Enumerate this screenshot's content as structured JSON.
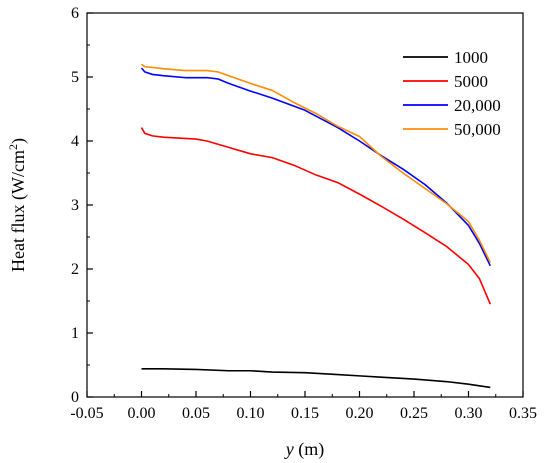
{
  "chart_data": {
    "type": "line",
    "title": "",
    "xlabel": "y",
    "xlabel_unit": " (m)",
    "ylabel": "Heat flux (W/cm",
    "ylabel_sup": "2",
    "ylabel_end": ")",
    "xlim": [
      -0.05,
      0.35
    ],
    "ylim": [
      0,
      6
    ],
    "xticks": [
      -0.05,
      0.0,
      0.05,
      0.1,
      0.15,
      0.2,
      0.25,
      0.3,
      0.35
    ],
    "xtick_labels": [
      "-0.05",
      "0.00",
      "0.05",
      "0.10",
      "0.15",
      "0.20",
      "0.25",
      "0.30",
      "0.35"
    ],
    "yticks": [
      0,
      1,
      2,
      3,
      4,
      5,
      6
    ],
    "ytick_labels": [
      "0",
      "1",
      "2",
      "3",
      "4",
      "5",
      "6"
    ],
    "grid": false,
    "legend_position": "top-right",
    "series": [
      {
        "name": "1000",
        "color": "#000000",
        "x": [
          0.0,
          0.02,
          0.05,
          0.08,
          0.1,
          0.12,
          0.15,
          0.18,
          0.2,
          0.22,
          0.25,
          0.28,
          0.3,
          0.32
        ],
        "y": [
          0.44,
          0.44,
          0.43,
          0.41,
          0.41,
          0.39,
          0.38,
          0.35,
          0.33,
          0.31,
          0.28,
          0.24,
          0.2,
          0.15
        ]
      },
      {
        "name": "5000",
        "color": "#ff0000",
        "x": [
          0.0,
          0.003,
          0.01,
          0.02,
          0.03,
          0.05,
          0.06,
          0.08,
          0.1,
          0.12,
          0.14,
          0.16,
          0.18,
          0.2,
          0.22,
          0.24,
          0.26,
          0.28,
          0.3,
          0.31,
          0.32
        ],
        "y": [
          4.21,
          4.12,
          4.08,
          4.06,
          4.05,
          4.03,
          4.0,
          3.9,
          3.8,
          3.74,
          3.62,
          3.47,
          3.35,
          3.17,
          2.98,
          2.78,
          2.57,
          2.35,
          2.07,
          1.85,
          1.45
        ]
      },
      {
        "name": "20,000",
        "color": "#0000ff",
        "x": [
          0.0,
          0.003,
          0.01,
          0.02,
          0.04,
          0.06,
          0.07,
          0.08,
          0.1,
          0.12,
          0.15,
          0.18,
          0.2,
          0.22,
          0.24,
          0.26,
          0.28,
          0.3,
          0.31,
          0.32
        ],
        "y": [
          5.14,
          5.08,
          5.04,
          5.02,
          4.99,
          4.99,
          4.97,
          4.9,
          4.78,
          4.67,
          4.48,
          4.21,
          4.0,
          3.77,
          3.56,
          3.32,
          3.03,
          2.68,
          2.4,
          2.05
        ]
      },
      {
        "name": "50,000",
        "color": "#ff8c00",
        "x": [
          0.0,
          0.003,
          0.01,
          0.02,
          0.04,
          0.06,
          0.07,
          0.08,
          0.1,
          0.12,
          0.14,
          0.16,
          0.18,
          0.2,
          0.22,
          0.24,
          0.26,
          0.28,
          0.3,
          0.31,
          0.32
        ],
        "y": [
          5.2,
          5.16,
          5.15,
          5.13,
          5.1,
          5.1,
          5.08,
          5.02,
          4.9,
          4.79,
          4.6,
          4.43,
          4.23,
          4.07,
          3.76,
          3.5,
          3.26,
          3.02,
          2.74,
          2.45,
          2.1
        ]
      }
    ]
  }
}
